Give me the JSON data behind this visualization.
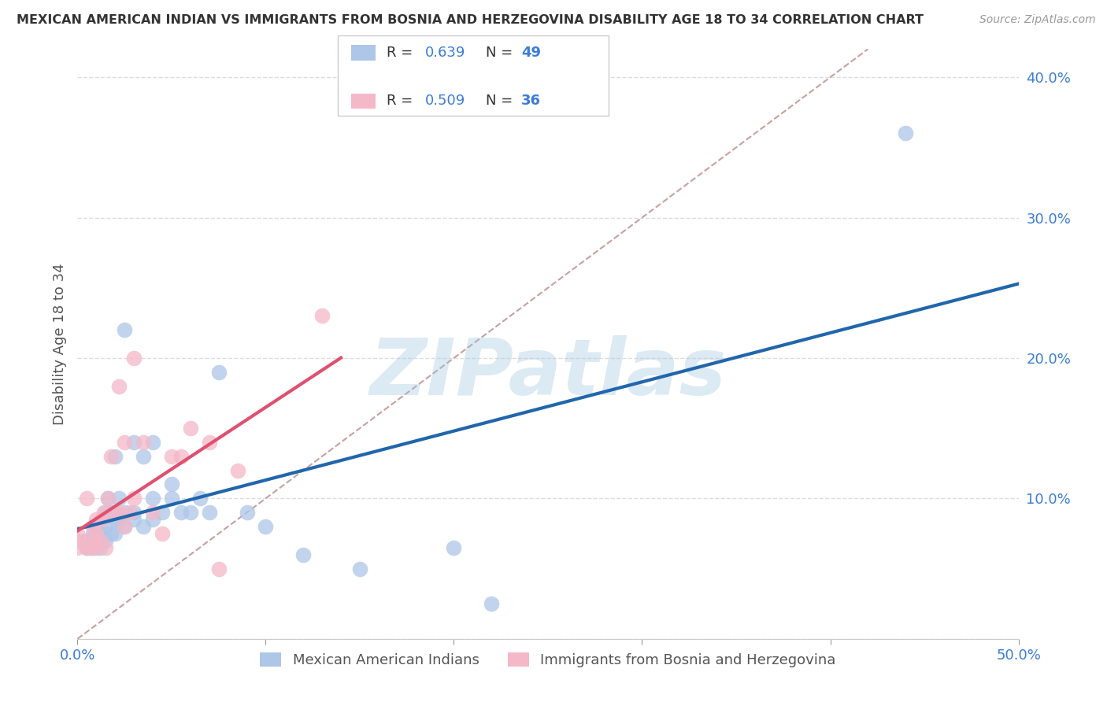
{
  "title": "MEXICAN AMERICAN INDIAN VS IMMIGRANTS FROM BOSNIA AND HERZEGOVINA DISABILITY AGE 18 TO 34 CORRELATION CHART",
  "source": "Source: ZipAtlas.com",
  "ylabel": "Disability Age 18 to 34",
  "xlim": [
    0.0,
    0.5
  ],
  "ylim": [
    0.0,
    0.42
  ],
  "xticks": [
    0.0,
    0.1,
    0.2,
    0.3,
    0.4,
    0.5
  ],
  "yticks": [
    0.0,
    0.1,
    0.2,
    0.3,
    0.4
  ],
  "ytick_labels_right": [
    "",
    "10.0%",
    "20.0%",
    "30.0%",
    "40.0%"
  ],
  "xtick_labels": [
    "0.0%",
    "",
    "",
    "",
    "",
    "50.0%"
  ],
  "watermark": "ZIPatlas",
  "legend_blue_label": "Mexican American Indians",
  "legend_pink_label": "Immigrants from Bosnia and Herzegovina",
  "blue_R": "R = 0.639",
  "blue_N": "N = 49",
  "pink_R": "R = 0.509",
  "pink_N": "N = 36",
  "blue_fill_color": "#aec6e8",
  "pink_fill_color": "#f4b8c8",
  "blue_line_color": "#2166ac",
  "pink_line_color": "#e05070",
  "diagonal_color": "#c8a0a0",
  "label_color": "#3b7dd8",
  "blue_scatter_x": [
    0.005,
    0.005,
    0.008,
    0.008,
    0.008,
    0.01,
    0.01,
    0.01,
    0.012,
    0.012,
    0.012,
    0.015,
    0.015,
    0.015,
    0.016,
    0.018,
    0.018,
    0.02,
    0.02,
    0.02,
    0.02,
    0.022,
    0.022,
    0.025,
    0.025,
    0.025,
    0.03,
    0.03,
    0.03,
    0.035,
    0.035,
    0.04,
    0.04,
    0.04,
    0.045,
    0.05,
    0.05,
    0.055,
    0.06,
    0.065,
    0.07,
    0.075,
    0.09,
    0.1,
    0.12,
    0.15,
    0.2,
    0.22,
    0.44
  ],
  "blue_scatter_y": [
    0.065,
    0.07,
    0.065,
    0.07,
    0.075,
    0.07,
    0.075,
    0.08,
    0.065,
    0.075,
    0.08,
    0.07,
    0.08,
    0.09,
    0.1,
    0.075,
    0.09,
    0.075,
    0.085,
    0.09,
    0.13,
    0.085,
    0.1,
    0.08,
    0.09,
    0.22,
    0.085,
    0.09,
    0.14,
    0.08,
    0.13,
    0.085,
    0.1,
    0.14,
    0.09,
    0.1,
    0.11,
    0.09,
    0.09,
    0.1,
    0.09,
    0.19,
    0.09,
    0.08,
    0.06,
    0.05,
    0.065,
    0.025,
    0.36
  ],
  "pink_scatter_x": [
    0.0,
    0.0,
    0.0,
    0.005,
    0.005,
    0.005,
    0.007,
    0.008,
    0.009,
    0.01,
    0.01,
    0.01,
    0.012,
    0.013,
    0.014,
    0.015,
    0.016,
    0.018,
    0.02,
    0.022,
    0.022,
    0.025,
    0.025,
    0.028,
    0.03,
    0.03,
    0.035,
    0.04,
    0.045,
    0.05,
    0.055,
    0.06,
    0.07,
    0.075,
    0.085,
    0.13
  ],
  "pink_scatter_y": [
    0.065,
    0.07,
    0.075,
    0.065,
    0.07,
    0.1,
    0.065,
    0.08,
    0.07,
    0.065,
    0.075,
    0.085,
    0.07,
    0.085,
    0.09,
    0.065,
    0.1,
    0.13,
    0.09,
    0.09,
    0.18,
    0.08,
    0.14,
    0.09,
    0.1,
    0.2,
    0.14,
    0.09,
    0.075,
    0.13,
    0.13,
    0.15,
    0.14,
    0.05,
    0.12,
    0.23
  ],
  "background_color": "#ffffff",
  "grid_color": "#dddddd"
}
